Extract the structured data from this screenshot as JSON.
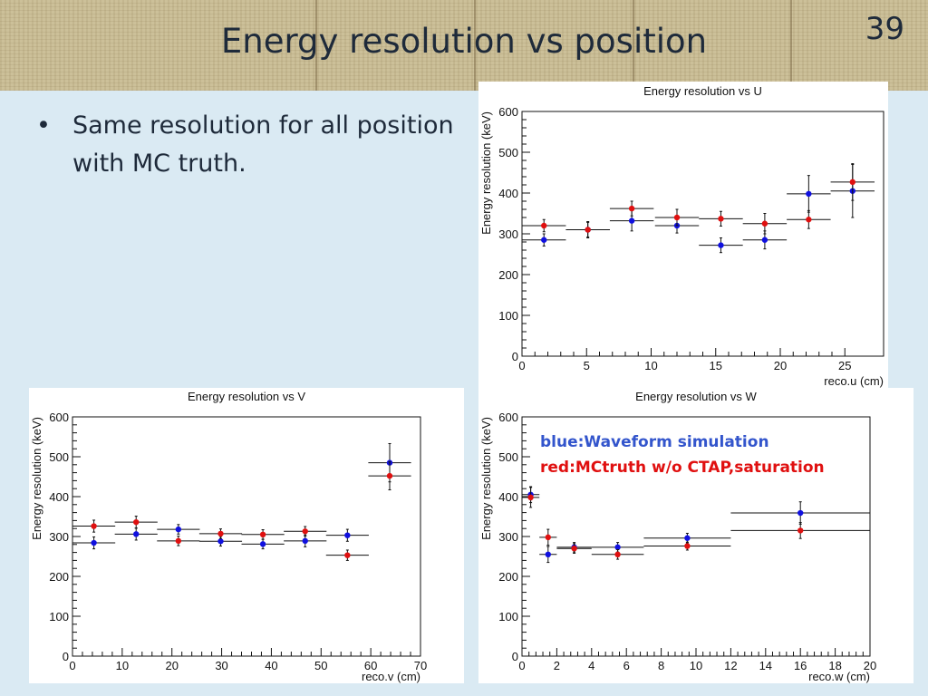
{
  "slide": {
    "title": "Energy resolution vs position",
    "page_number": "39",
    "bullet_marker": "•",
    "bullet_text": "Same resolution for all position with MC truth."
  },
  "legend": {
    "blue_text": "blue:Waveform simulation",
    "red_text": "red:MCtruth w/o CTAP,saturation"
  },
  "colors": {
    "blue": "#1010e0",
    "red": "#e01010",
    "error": "#111111"
  },
  "chart_data": [
    {
      "type": "scatter",
      "title": "Energy resolution vs U",
      "xlabel": "reco.u (cm)",
      "ylabel": "Energy resolution (keV)",
      "xlim": [
        0,
        28
      ],
      "ylim": [
        0,
        600
      ],
      "xticks": [
        0,
        5,
        10,
        15,
        20,
        25
      ],
      "yticks": [
        0,
        100,
        200,
        300,
        400,
        500,
        600
      ],
      "series": [
        {
          "name": "blue",
          "color": "#1010e0",
          "points": [
            {
              "x": 1.7,
              "xerr": 1.7,
              "y": 285,
              "yerr": 15
            },
            {
              "x": 5.1,
              "xerr": 1.7,
              "y": 310,
              "yerr": 20
            },
            {
              "x": 8.5,
              "xerr": 1.7,
              "y": 332,
              "yerr": 25
            },
            {
              "x": 12.0,
              "xerr": 1.7,
              "y": 320,
              "yerr": 18
            },
            {
              "x": 15.4,
              "xerr": 1.7,
              "y": 272,
              "yerr": 18
            },
            {
              "x": 18.8,
              "xerr": 1.7,
              "y": 285,
              "yerr": 22
            },
            {
              "x": 22.2,
              "xerr": 1.7,
              "y": 398,
              "yerr": 45
            },
            {
              "x": 25.6,
              "xerr": 1.7,
              "y": 405,
              "yerr": 65
            }
          ]
        },
        {
          "name": "red",
          "color": "#e01010",
          "points": [
            {
              "x": 1.7,
              "xerr": 1.7,
              "y": 320,
              "yerr": 15
            },
            {
              "x": 5.1,
              "xerr": 1.7,
              "y": 310,
              "yerr": 18
            },
            {
              "x": 8.5,
              "xerr": 1.7,
              "y": 362,
              "yerr": 18
            },
            {
              "x": 12.0,
              "xerr": 1.7,
              "y": 340,
              "yerr": 20
            },
            {
              "x": 15.4,
              "xerr": 1.7,
              "y": 337,
              "yerr": 18
            },
            {
              "x": 18.8,
              "xerr": 1.7,
              "y": 325,
              "yerr": 25
            },
            {
              "x": 22.2,
              "xerr": 1.7,
              "y": 335,
              "yerr": 22
            },
            {
              "x": 25.6,
              "xerr": 1.7,
              "y": 427,
              "yerr": 45
            }
          ]
        }
      ]
    },
    {
      "type": "scatter",
      "title": "Energy resolution vs V",
      "xlabel": "reco.v (cm)",
      "ylabel": "Energy resolution (keV)",
      "xlim": [
        0,
        70
      ],
      "ylim": [
        0,
        600
      ],
      "xticks": [
        0,
        10,
        20,
        30,
        40,
        50,
        60,
        70
      ],
      "yticks": [
        0,
        100,
        200,
        300,
        400,
        500,
        600
      ],
      "series": [
        {
          "name": "blue",
          "color": "#1010e0",
          "points": [
            {
              "x": 4.3,
              "xerr": 4.3,
              "y": 284,
              "yerr": 15
            },
            {
              "x": 12.8,
              "xerr": 4.3,
              "y": 306,
              "yerr": 15
            },
            {
              "x": 21.3,
              "xerr": 4.3,
              "y": 318,
              "yerr": 12
            },
            {
              "x": 29.8,
              "xerr": 4.3,
              "y": 288,
              "yerr": 12
            },
            {
              "x": 38.3,
              "xerr": 4.3,
              "y": 281,
              "yerr": 12
            },
            {
              "x": 46.8,
              "xerr": 4.3,
              "y": 289,
              "yerr": 15
            },
            {
              "x": 55.3,
              "xerr": 4.3,
              "y": 303,
              "yerr": 15
            },
            {
              "x": 63.8,
              "xerr": 4.3,
              "y": 485,
              "yerr": 48
            }
          ]
        },
        {
          "name": "red",
          "color": "#e01010",
          "points": [
            {
              "x": 4.3,
              "xerr": 4.3,
              "y": 326,
              "yerr": 15
            },
            {
              "x": 12.8,
              "xerr": 4.3,
              "y": 336,
              "yerr": 15
            },
            {
              "x": 21.3,
              "xerr": 4.3,
              "y": 289,
              "yerr": 12
            },
            {
              "x": 29.8,
              "xerr": 4.3,
              "y": 307,
              "yerr": 12
            },
            {
              "x": 38.3,
              "xerr": 4.3,
              "y": 305,
              "yerr": 12
            },
            {
              "x": 46.8,
              "xerr": 4.3,
              "y": 313,
              "yerr": 12
            },
            {
              "x": 55.3,
              "xerr": 4.3,
              "y": 253,
              "yerr": 13
            },
            {
              "x": 63.8,
              "xerr": 4.3,
              "y": 452,
              "yerr": 35
            }
          ]
        }
      ]
    },
    {
      "type": "scatter",
      "title": "Energy resolution vs W",
      "xlabel": "reco.w (cm)",
      "ylabel": "Energy resolution (keV)",
      "xlim": [
        0,
        20
      ],
      "ylim": [
        0,
        600
      ],
      "xticks": [
        0,
        2,
        4,
        6,
        8,
        10,
        12,
        14,
        16,
        18,
        20
      ],
      "yticks": [
        0,
        100,
        200,
        300,
        400,
        500,
        600
      ],
      "series": [
        {
          "name": "blue",
          "color": "#1010e0",
          "points": [
            {
              "x": 0.5,
              "xerr": 0.5,
              "y": 405,
              "yerr": 20
            },
            {
              "x": 1.5,
              "xerr": 0.5,
              "y": 255,
              "yerr": 20
            },
            {
              "x": 3.0,
              "xerr": 1.0,
              "y": 273,
              "yerr": 12
            },
            {
              "x": 5.5,
              "xerr": 1.5,
              "y": 273,
              "yerr": 12
            },
            {
              "x": 9.5,
              "xerr": 2.5,
              "y": 296,
              "yerr": 12
            },
            {
              "x": 16.0,
              "xerr": 4.0,
              "y": 359,
              "yerr": 28
            }
          ]
        },
        {
          "name": "red",
          "color": "#e01010",
          "points": [
            {
              "x": 0.5,
              "xerr": 0.5,
              "y": 398,
              "yerr": 25
            },
            {
              "x": 1.5,
              "xerr": 0.5,
              "y": 298,
              "yerr": 20
            },
            {
              "x": 3.0,
              "xerr": 1.0,
              "y": 270,
              "yerr": 12
            },
            {
              "x": 5.5,
              "xerr": 1.5,
              "y": 255,
              "yerr": 12
            },
            {
              "x": 9.5,
              "xerr": 2.5,
              "y": 276,
              "yerr": 10
            },
            {
              "x": 16.0,
              "xerr": 4.0,
              "y": 315,
              "yerr": 20
            }
          ]
        }
      ]
    }
  ]
}
